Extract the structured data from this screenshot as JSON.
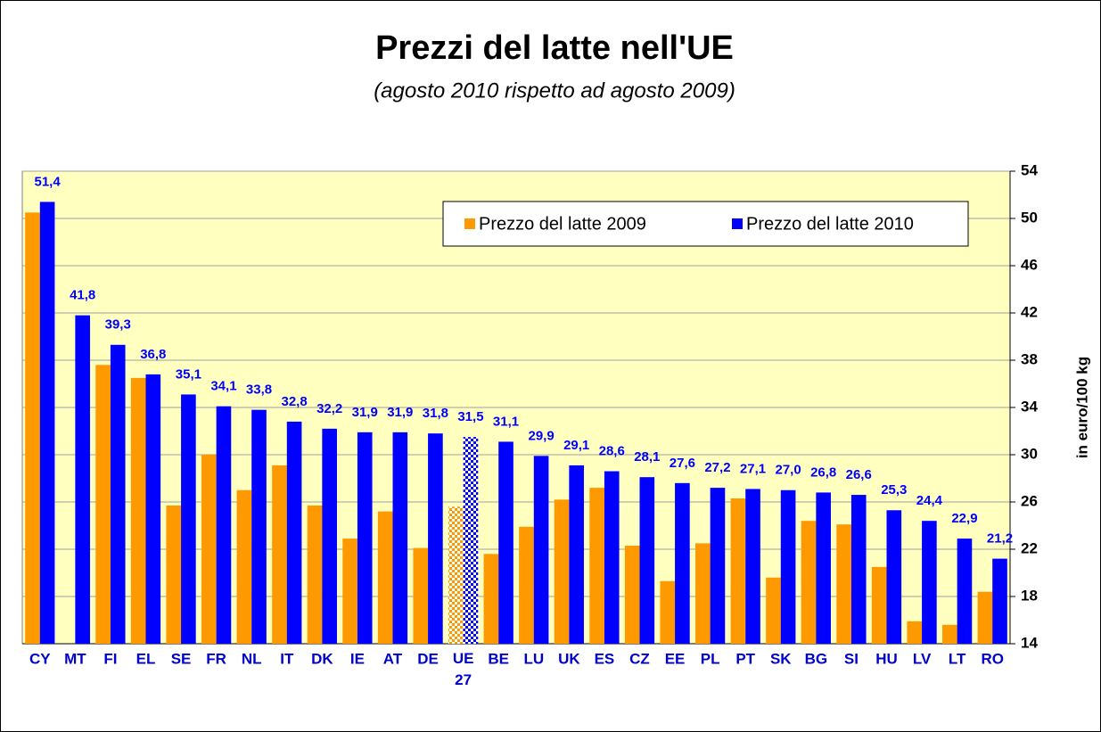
{
  "chart_data": {
    "type": "bar",
    "title": "Prezzi del latte nell'UE",
    "subtitle": "(agosto 2010 rispetto ad agosto 2009)",
    "y_axis_label": "in euro/100 kg",
    "categories": [
      "CY",
      "MT",
      "FI",
      "EL",
      "SE",
      "FR",
      "NL",
      "IT",
      "DK",
      "IE",
      "AT",
      "DE",
      "UE 27",
      "BE",
      "LU",
      "UK",
      "ES",
      "CZ",
      "EE",
      "PL",
      "PT",
      "SK",
      "BG",
      "SI",
      "HU",
      "LV",
      "LT",
      "RO"
    ],
    "series": [
      {
        "name": "Prezzo del latte 2009",
        "color": "#ff9900",
        "values": [
          50.5,
          null,
          37.6,
          36.5,
          25.7,
          30.0,
          27.0,
          29.1,
          25.7,
          22.9,
          25.2,
          22.1,
          25.6,
          21.6,
          23.9,
          26.2,
          27.2,
          22.3,
          19.3,
          22.5,
          26.3,
          19.6,
          24.4,
          24.1,
          20.5,
          15.9,
          15.6,
          18.4
        ]
      },
      {
        "name": "Prezzo del latte 2010",
        "color": "#0000ff",
        "values": [
          51.4,
          41.8,
          39.3,
          36.8,
          35.1,
          34.1,
          33.8,
          32.8,
          32.2,
          31.9,
          31.9,
          31.8,
          31.5,
          31.1,
          29.9,
          29.1,
          28.6,
          28.1,
          27.6,
          27.2,
          27.1,
          27.0,
          26.8,
          26.6,
          25.3,
          24.4,
          22.9,
          21.2
        ],
        "value_labels": [
          "51,4",
          "41,8",
          "39,3",
          "36,8",
          "35,1",
          "34,1",
          "33,8",
          "32,8",
          "32,2",
          "31,9",
          "31,9",
          "31,8",
          "31,5",
          "31,1",
          "29,9",
          "29,1",
          "28,6",
          "28,1",
          "27,6",
          "27,2",
          "27,1",
          "27,0",
          "26,8",
          "26,6",
          "25,3",
          "24,4",
          "22,9",
          "21,2"
        ]
      }
    ],
    "highlight_category": "UE 27",
    "ylim": [
      14,
      54
    ],
    "yticks": [
      14,
      18,
      22,
      26,
      30,
      34,
      38,
      42,
      46,
      50,
      54
    ],
    "y_axis_side": "right",
    "grid": true,
    "legend": "top-right",
    "plot_background": "#ffffc0"
  }
}
